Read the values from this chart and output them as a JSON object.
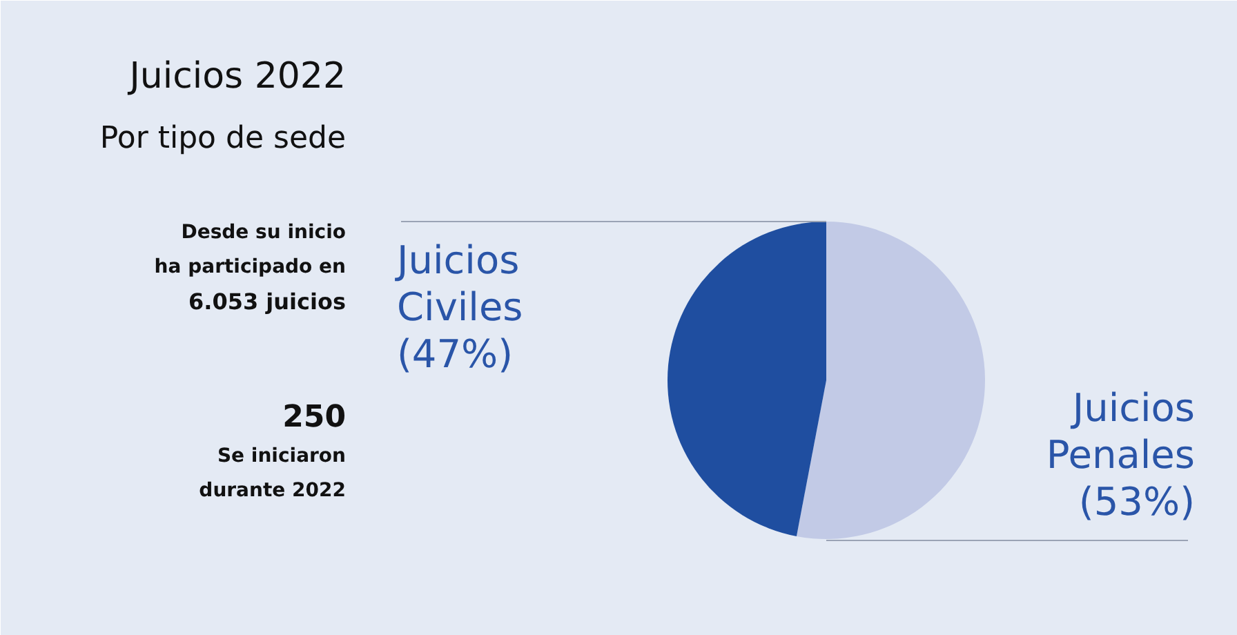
{
  "chart_data": {
    "type": "pie",
    "title": "Juicios 2022",
    "subtitle": "Por tipo de sede",
    "categories": [
      "Juicios Penales",
      "Juicios Civiles"
    ],
    "values": [
      53,
      47
    ],
    "colors": [
      "#c2cae6",
      "#1f4ea0"
    ],
    "value_labels": [
      "(53%)",
      "(47%)"
    ],
    "annotations": [
      "Desde su inicio",
      "ha participado en",
      "6.053 juicios",
      "250",
      "Se iniciaron",
      "durante 2022"
    ]
  }
}
